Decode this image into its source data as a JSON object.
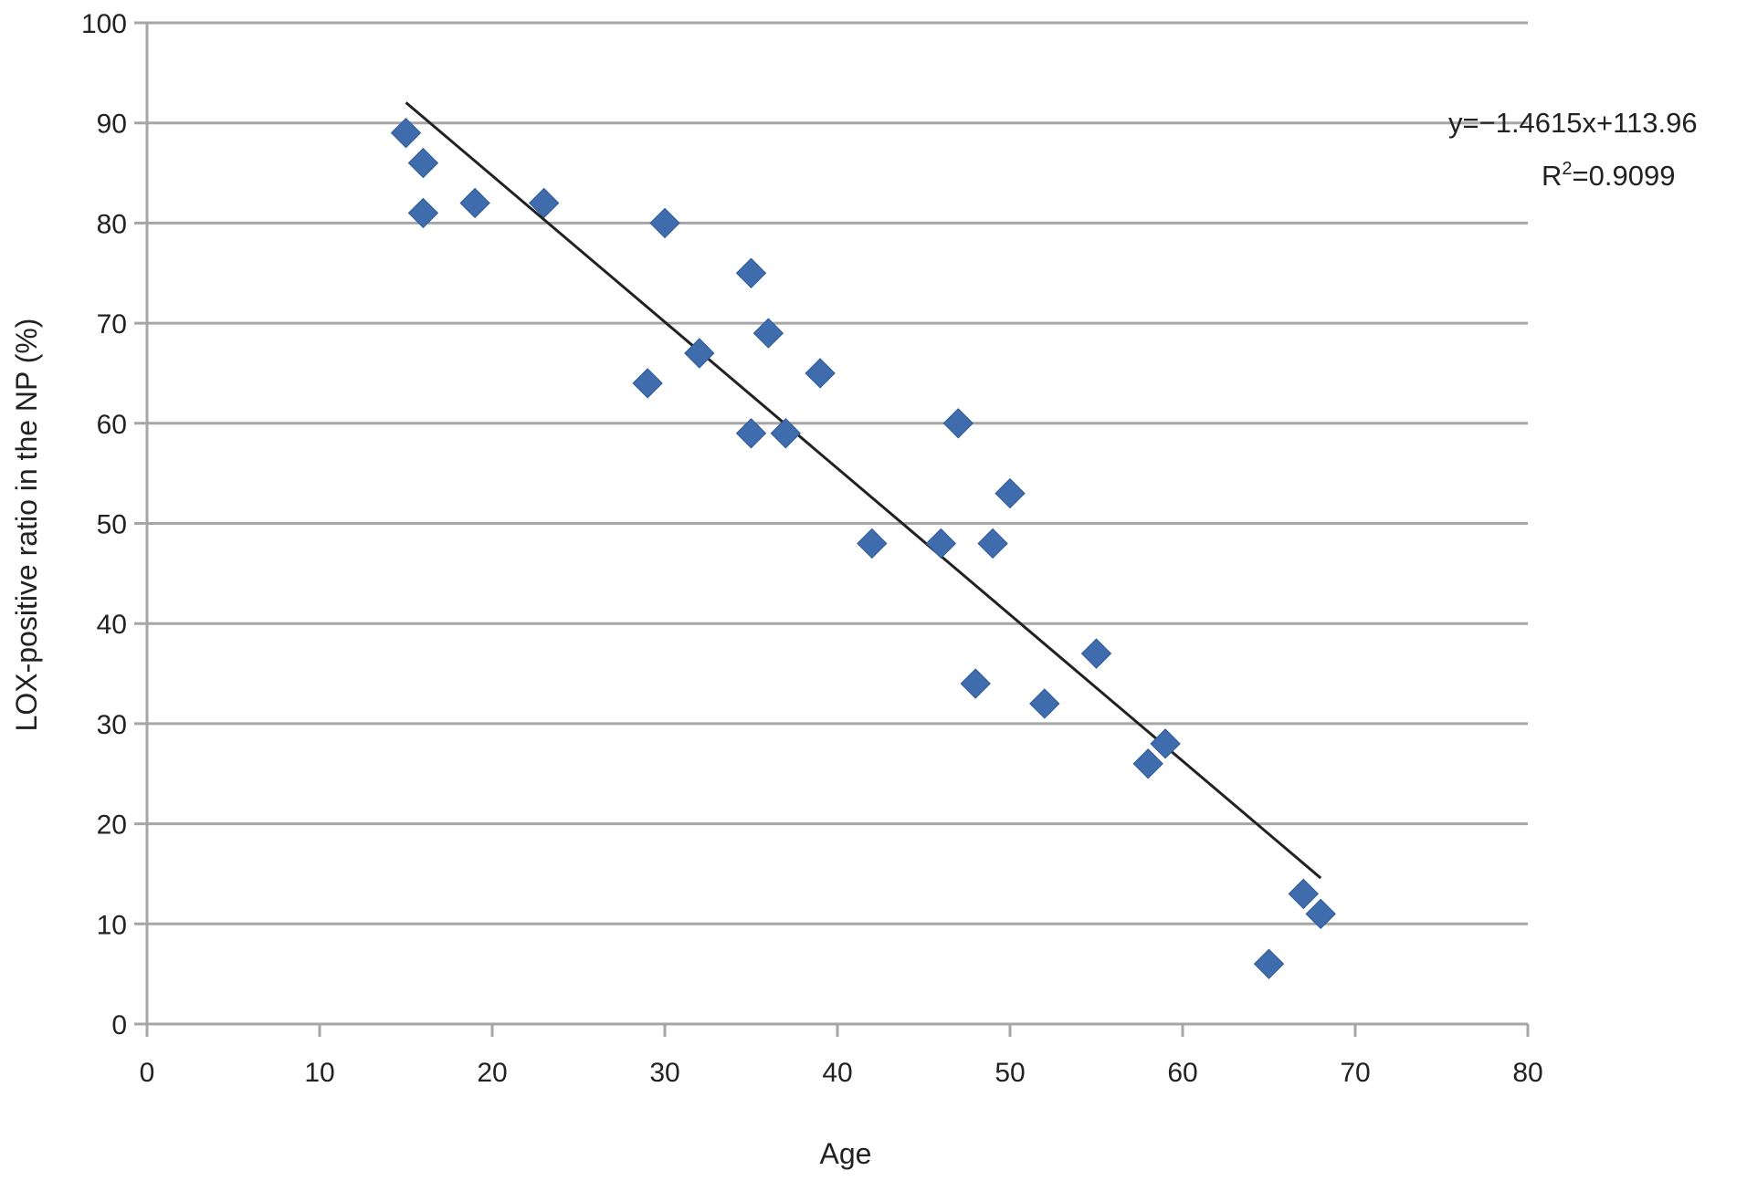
{
  "chart_data": {
    "type": "scatter",
    "title": "",
    "xlabel": "Age",
    "ylabel": "LOX-positive ratio in the NP (%)",
    "xlim": [
      0,
      80
    ],
    "ylim": [
      0,
      100
    ],
    "x_ticks": [
      "0",
      "10",
      "20",
      "30",
      "40",
      "50",
      "60",
      "70",
      "80"
    ],
    "y_ticks": [
      "0",
      "10",
      "20",
      "30",
      "40",
      "50",
      "60",
      "70",
      "80",
      "90",
      "100"
    ],
    "grid": "horizontal",
    "marker": "diamond",
    "marker_color": "#3e6cad",
    "points": [
      {
        "x": 15,
        "y": 89
      },
      {
        "x": 16,
        "y": 86
      },
      {
        "x": 16,
        "y": 81
      },
      {
        "x": 19,
        "y": 82
      },
      {
        "x": 23,
        "y": 82
      },
      {
        "x": 30,
        "y": 80
      },
      {
        "x": 29,
        "y": 64
      },
      {
        "x": 32,
        "y": 67
      },
      {
        "x": 35,
        "y": 75
      },
      {
        "x": 36,
        "y": 69
      },
      {
        "x": 35,
        "y": 59
      },
      {
        "x": 37,
        "y": 59
      },
      {
        "x": 39,
        "y": 65
      },
      {
        "x": 42,
        "y": 48
      },
      {
        "x": 46,
        "y": 48
      },
      {
        "x": 47,
        "y": 60
      },
      {
        "x": 49,
        "y": 48
      },
      {
        "x": 50,
        "y": 53
      },
      {
        "x": 48,
        "y": 34
      },
      {
        "x": 52,
        "y": 32
      },
      {
        "x": 55,
        "y": 37
      },
      {
        "x": 58,
        "y": 26
      },
      {
        "x": 59,
        "y": 28
      },
      {
        "x": 65,
        "y": 6
      },
      {
        "x": 67,
        "y": 13
      },
      {
        "x": 68,
        "y": 11
      }
    ],
    "trendline": {
      "slope": -1.4615,
      "intercept": 113.96,
      "x_range": [
        15,
        68
      ],
      "color": "#222222",
      "equation": "y=−1.4615x+113.96",
      "r2_prefix": "R",
      "r2_sup": "2",
      "r2_value": "=0.9099"
    }
  }
}
